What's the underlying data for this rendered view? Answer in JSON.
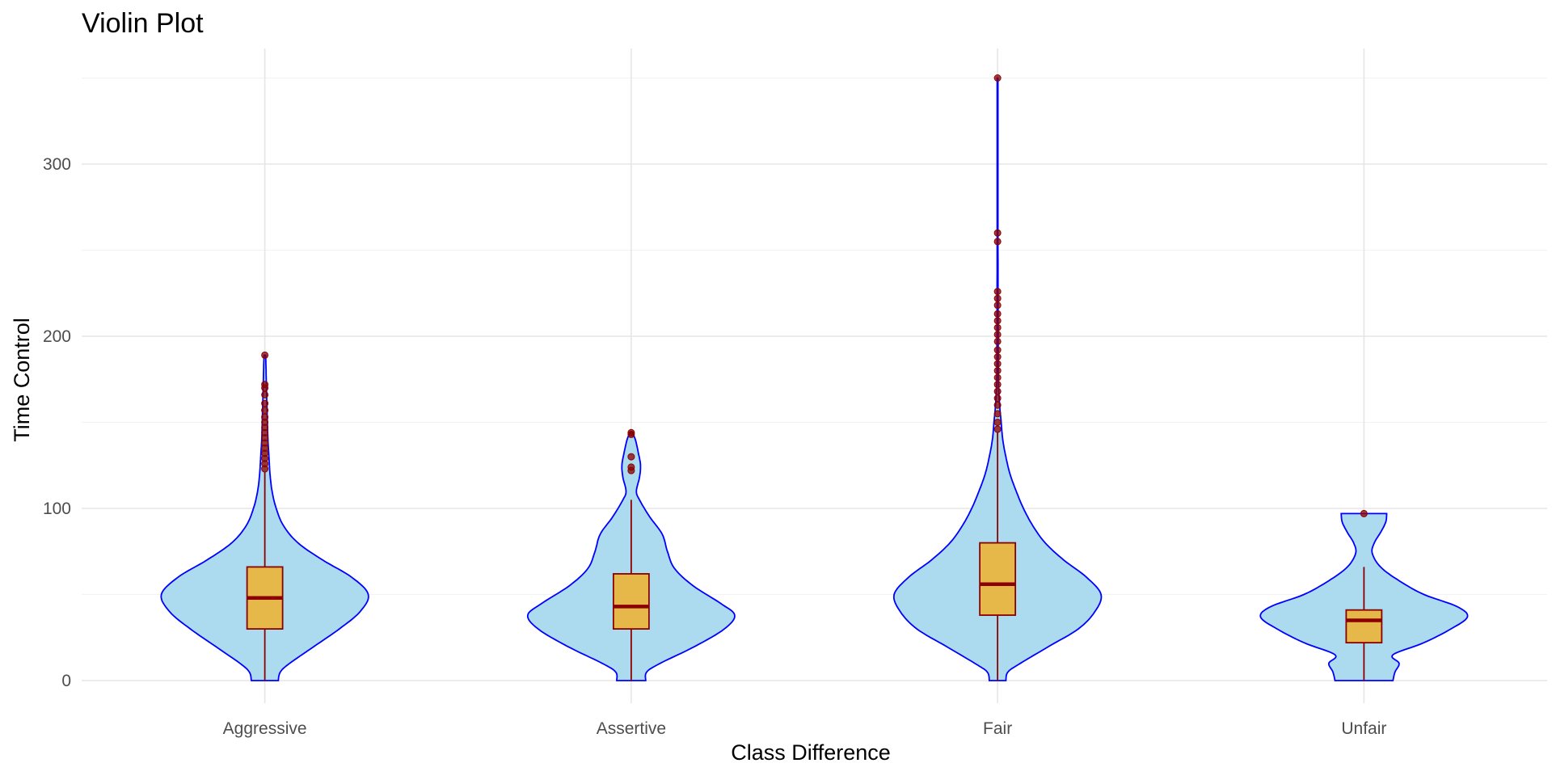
{
  "chart_data": {
    "type": "violin",
    "title": "Violin Plot",
    "xlabel": "Class Difference",
    "ylabel": "Time Control",
    "categories": [
      "Aggressive",
      "Assertive",
      "Fair",
      "Unfair"
    ],
    "y_ticks": [
      0,
      100,
      200,
      300
    ],
    "ylim": [
      -15,
      365
    ],
    "grid": true,
    "legend": "none",
    "colors": {
      "violin_fill": "#a8d8ee",
      "violin_stroke": "#0000ff",
      "box_fill": "#e6b84a",
      "box_stroke": "#8b0000",
      "outlier": "#8b0000"
    },
    "groups": [
      {
        "name": "Aggressive",
        "box": {
          "q1": 30,
          "median": 48,
          "q3": 66,
          "whisker_low": 0,
          "whisker_high": 121
        },
        "outliers": [
          123,
          126,
          129,
          132,
          135,
          138,
          141,
          144,
          147,
          150,
          153,
          157,
          161,
          166,
          170,
          172,
          189
        ],
        "density": [
          [
            0,
            0.13
          ],
          [
            5,
            0.15
          ],
          [
            10,
            0.24
          ],
          [
            20,
            0.48
          ],
          [
            30,
            0.72
          ],
          [
            40,
            0.92
          ],
          [
            50,
            1.0
          ],
          [
            60,
            0.84
          ],
          [
            70,
            0.56
          ],
          [
            80,
            0.32
          ],
          [
            90,
            0.18
          ],
          [
            100,
            0.11
          ],
          [
            110,
            0.07
          ],
          [
            120,
            0.05
          ],
          [
            130,
            0.04
          ],
          [
            140,
            0.03
          ],
          [
            150,
            0.025
          ],
          [
            165,
            0.018
          ],
          [
            180,
            0.012
          ],
          [
            189,
            0.008
          ]
        ]
      },
      {
        "name": "Assertive",
        "box": {
          "q1": 30,
          "median": 43,
          "q3": 62,
          "whisker_low": 0,
          "whisker_high": 105
        },
        "outliers": [
          122,
          124,
          130,
          143,
          144
        ],
        "density": [
          [
            0,
            0.14
          ],
          [
            5,
            0.15
          ],
          [
            10,
            0.28
          ],
          [
            20,
            0.62
          ],
          [
            30,
            0.9
          ],
          [
            38,
            1.0
          ],
          [
            45,
            0.86
          ],
          [
            55,
            0.6
          ],
          [
            65,
            0.42
          ],
          [
            75,
            0.35
          ],
          [
            85,
            0.3
          ],
          [
            95,
            0.18
          ],
          [
            105,
            0.08
          ],
          [
            110,
            0.05
          ],
          [
            118,
            0.08
          ],
          [
            125,
            0.09
          ],
          [
            132,
            0.07
          ],
          [
            140,
            0.04
          ],
          [
            144,
            0.01
          ]
        ]
      },
      {
        "name": "Fair",
        "box": {
          "q1": 38,
          "median": 56,
          "q3": 80,
          "whisker_low": 0,
          "whisker_high": 144
        },
        "outliers": [
          146,
          150,
          155,
          160,
          164,
          168,
          172,
          176,
          180,
          184,
          188,
          192,
          197,
          201,
          205,
          209,
          213,
          218,
          222,
          226,
          255,
          260,
          350
        ],
        "density": [
          [
            0,
            0.08
          ],
          [
            5,
            0.1
          ],
          [
            10,
            0.22
          ],
          [
            20,
            0.5
          ],
          [
            30,
            0.78
          ],
          [
            40,
            0.94
          ],
          [
            50,
            1.0
          ],
          [
            60,
            0.86
          ],
          [
            70,
            0.64
          ],
          [
            80,
            0.46
          ],
          [
            90,
            0.34
          ],
          [
            100,
            0.25
          ],
          [
            110,
            0.18
          ],
          [
            120,
            0.12
          ],
          [
            130,
            0.08
          ],
          [
            140,
            0.05
          ],
          [
            150,
            0.035
          ],
          [
            160,
            0.02
          ],
          [
            175,
            0.008
          ],
          [
            200,
            0.006
          ],
          [
            250,
            0.004
          ],
          [
            300,
            0.004
          ],
          [
            350,
            0.004
          ]
        ]
      },
      {
        "name": "Unfair",
        "box": {
          "q1": 22,
          "median": 35,
          "q3": 41,
          "whisker_low": 0,
          "whisker_high": 66
        },
        "outliers": [
          97
        ],
        "density": [
          [
            0,
            0.28
          ],
          [
            5,
            0.3
          ],
          [
            10,
            0.34
          ],
          [
            15,
            0.28
          ],
          [
            22,
            0.58
          ],
          [
            30,
            0.84
          ],
          [
            37,
            1.0
          ],
          [
            43,
            0.9
          ],
          [
            50,
            0.58
          ],
          [
            58,
            0.34
          ],
          [
            66,
            0.16
          ],
          [
            74,
            0.08
          ],
          [
            80,
            0.1
          ],
          [
            86,
            0.16
          ],
          [
            92,
            0.21
          ],
          [
            97,
            0.22
          ]
        ]
      }
    ]
  }
}
